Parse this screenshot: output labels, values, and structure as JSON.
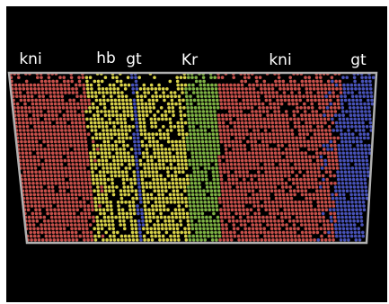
{
  "image": {
    "description_free": true
  },
  "gene_labels": [
    "kni",
    "hb",
    "gt",
    "Kr",
    "kni",
    "gt"
  ],
  "colors": {
    "background": "#000000",
    "frame": "#b0b0b0",
    "kni": "#c8504b",
    "hb": "#d9d24a",
    "gt": "#4852b8",
    "Kr": "#7fb244",
    "empty": "#000000"
  },
  "domains": [
    {
      "gene": "kni",
      "from": 0.0,
      "to": 0.2
    },
    {
      "gene": "hb",
      "from": 0.2,
      "to": 0.33
    },
    {
      "gene": "gt",
      "from": 0.33,
      "to": 0.345
    },
    {
      "gene": "hb",
      "from": 0.345,
      "to": 0.48
    },
    {
      "gene": "Kr",
      "from": 0.48,
      "to": 0.57
    },
    {
      "gene": "kni",
      "from": 0.57,
      "to": 0.91
    },
    {
      "gene": "gt",
      "from": 0.91,
      "to": 1.0
    }
  ]
}
